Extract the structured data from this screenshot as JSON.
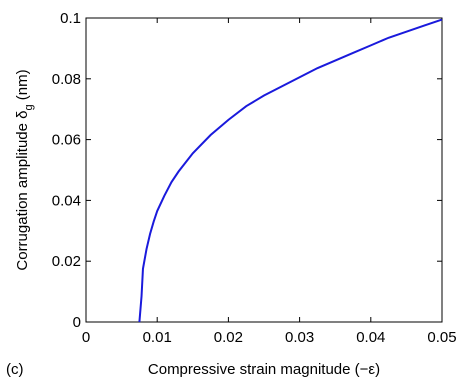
{
  "panel_label": "(c)",
  "chart_data": {
    "type": "line",
    "title": "",
    "xlabel": "Compressive strain magnitude (−ε)",
    "ylabel_main": "Corrugation amplitude δ",
    "ylabel_sub": "g",
    "ylabel_unit": " (nm)",
    "xlim": [
      0,
      0.05
    ],
    "ylim": [
      0,
      0.1
    ],
    "xticks": [
      0,
      0.01,
      0.02,
      0.03,
      0.04,
      0.05
    ],
    "xtick_labels": [
      "0",
      "0.01",
      "0.02",
      "0.03",
      "0.04",
      "0.05"
    ],
    "yticks": [
      0,
      0.02,
      0.04,
      0.06,
      0.08,
      0.1
    ],
    "ytick_labels": [
      "0",
      "0.02",
      "0.04",
      "0.06",
      "0.08",
      "0.1"
    ],
    "grid": false,
    "legend": "none",
    "series": [
      {
        "color": "#1a1adc",
        "x": [
          0.0075,
          0.0078,
          0.008,
          0.0085,
          0.009,
          0.0095,
          0.01,
          0.011,
          0.012,
          0.013,
          0.014,
          0.015,
          0.0175,
          0.02,
          0.0225,
          0.025,
          0.0275,
          0.03,
          0.0325,
          0.035,
          0.0375,
          0.04,
          0.0425,
          0.045,
          0.0475,
          0.05
        ],
        "y": [
          0.0,
          0.0085,
          0.0175,
          0.024,
          0.029,
          0.033,
          0.0365,
          0.0415,
          0.046,
          0.0495,
          0.0525,
          0.0555,
          0.0615,
          0.0665,
          0.071,
          0.0745,
          0.0775,
          0.0805,
          0.0835,
          0.086,
          0.0885,
          0.091,
          0.0935,
          0.0955,
          0.0975,
          0.0995
        ]
      }
    ]
  }
}
